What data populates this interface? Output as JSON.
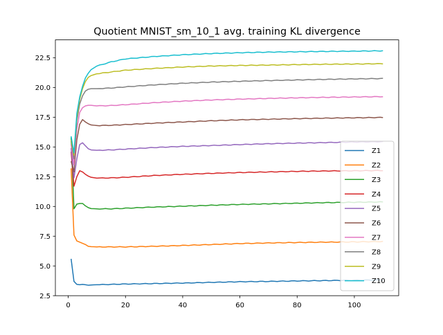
{
  "chart_data": {
    "type": "line",
    "title": "Quotient MNIST_sm_10_1 avg. training KL divergence",
    "xlabel": "",
    "ylabel": "",
    "xlim": [
      -4.5,
      115.5
    ],
    "ylim": [
      2.5,
      24.0
    ],
    "xticks": [
      0,
      20,
      40,
      60,
      80,
      100
    ],
    "yticks": [
      2.5,
      5.0,
      7.5,
      10.0,
      12.5,
      15.0,
      17.5,
      20.0,
      22.5
    ],
    "xtick_labels": [
      "0",
      "20",
      "40",
      "60",
      "80",
      "100"
    ],
    "ytick_labels": [
      "2.5",
      "5.0",
      "7.5",
      "10.0",
      "12.5",
      "15.0",
      "17.5",
      "20.0",
      "22.5"
    ],
    "grid": false,
    "legend": "right",
    "x_range": [
      1,
      110
    ],
    "series": [
      {
        "name": "Z1",
        "color": "#1f77b4",
        "points": [
          [
            1,
            5.6
          ],
          [
            2,
            3.7
          ],
          [
            3,
            3.45
          ],
          [
            4,
            3.42
          ],
          [
            5,
            3.45
          ],
          [
            6,
            3.42
          ],
          [
            7,
            3.38
          ],
          [
            8,
            3.4
          ],
          [
            10,
            3.42
          ],
          [
            15,
            3.45
          ],
          [
            20,
            3.48
          ],
          [
            30,
            3.52
          ],
          [
            40,
            3.56
          ],
          [
            50,
            3.62
          ],
          [
            60,
            3.67
          ],
          [
            70,
            3.7
          ],
          [
            80,
            3.74
          ],
          [
            90,
            3.77
          ],
          [
            100,
            3.8
          ],
          [
            110,
            3.82
          ]
        ]
      },
      {
        "name": "Z2",
        "color": "#ff7f0e",
        "points": [
          [
            1,
            13.2
          ],
          [
            2,
            7.6
          ],
          [
            3,
            7.1
          ],
          [
            4,
            7.0
          ],
          [
            5,
            6.9
          ],
          [
            6,
            6.8
          ],
          [
            7,
            6.65
          ],
          [
            8,
            6.62
          ],
          [
            10,
            6.6
          ],
          [
            15,
            6.6
          ],
          [
            20,
            6.6
          ],
          [
            30,
            6.65
          ],
          [
            40,
            6.72
          ],
          [
            50,
            6.8
          ],
          [
            60,
            6.88
          ],
          [
            70,
            6.93
          ],
          [
            80,
            6.97
          ],
          [
            90,
            7.0
          ],
          [
            100,
            7.02
          ],
          [
            110,
            7.05
          ]
        ]
      },
      {
        "name": "Z3",
        "color": "#2ca02c",
        "points": [
          [
            1,
            15.8
          ],
          [
            2,
            9.8
          ],
          [
            3,
            10.2
          ],
          [
            4,
            10.25
          ],
          [
            5,
            10.25
          ],
          [
            6,
            10.05
          ],
          [
            7,
            9.9
          ],
          [
            8,
            9.82
          ],
          [
            10,
            9.8
          ],
          [
            15,
            9.8
          ],
          [
            20,
            9.85
          ],
          [
            30,
            9.95
          ],
          [
            40,
            10.02
          ],
          [
            50,
            10.1
          ],
          [
            60,
            10.17
          ],
          [
            70,
            10.22
          ],
          [
            80,
            10.27
          ],
          [
            90,
            10.32
          ],
          [
            100,
            10.35
          ],
          [
            110,
            10.38
          ]
        ]
      },
      {
        "name": "Z4",
        "color": "#d62728",
        "points": [
          [
            1,
            14.6
          ],
          [
            2,
            11.7
          ],
          [
            3,
            12.5
          ],
          [
            4,
            13.0
          ],
          [
            5,
            12.9
          ],
          [
            6,
            12.7
          ],
          [
            7,
            12.55
          ],
          [
            8,
            12.45
          ],
          [
            10,
            12.38
          ],
          [
            15,
            12.4
          ],
          [
            20,
            12.45
          ],
          [
            30,
            12.6
          ],
          [
            40,
            12.7
          ],
          [
            50,
            12.78
          ],
          [
            60,
            12.85
          ],
          [
            70,
            12.9
          ],
          [
            80,
            12.95
          ],
          [
            90,
            12.98
          ],
          [
            100,
            13.0
          ],
          [
            110,
            13.02
          ]
        ]
      },
      {
        "name": "Z5",
        "color": "#9467bd",
        "points": [
          [
            1,
            14.9
          ],
          [
            2,
            12.4
          ],
          [
            3,
            14.0
          ],
          [
            4,
            15.2
          ],
          [
            5,
            15.35
          ],
          [
            6,
            15.1
          ],
          [
            7,
            14.85
          ],
          [
            8,
            14.75
          ],
          [
            10,
            14.72
          ],
          [
            15,
            14.75
          ],
          [
            20,
            14.82
          ],
          [
            30,
            14.95
          ],
          [
            40,
            15.05
          ],
          [
            50,
            15.12
          ],
          [
            60,
            15.2
          ],
          [
            70,
            15.27
          ],
          [
            80,
            15.32
          ],
          [
            90,
            15.37
          ],
          [
            100,
            15.41
          ],
          [
            110,
            15.44
          ]
        ]
      },
      {
        "name": "Z6",
        "color": "#8c564b",
        "points": [
          [
            1,
            13.8
          ],
          [
            2,
            12.9
          ],
          [
            3,
            15.6
          ],
          [
            4,
            16.9
          ],
          [
            5,
            17.3
          ],
          [
            6,
            17.1
          ],
          [
            7,
            16.95
          ],
          [
            8,
            16.85
          ],
          [
            10,
            16.8
          ],
          [
            15,
            16.82
          ],
          [
            20,
            16.88
          ],
          [
            30,
            17.0
          ],
          [
            40,
            17.1
          ],
          [
            50,
            17.2
          ],
          [
            60,
            17.28
          ],
          [
            70,
            17.33
          ],
          [
            80,
            17.38
          ],
          [
            90,
            17.42
          ],
          [
            100,
            17.45
          ],
          [
            110,
            17.48
          ]
        ]
      },
      {
        "name": "Z7",
        "color": "#e377c2",
        "points": [
          [
            1,
            15.2
          ],
          [
            2,
            13.5
          ],
          [
            3,
            16.5
          ],
          [
            4,
            17.9
          ],
          [
            5,
            18.3
          ],
          [
            6,
            18.45
          ],
          [
            7,
            18.5
          ],
          [
            8,
            18.5
          ],
          [
            10,
            18.45
          ],
          [
            15,
            18.48
          ],
          [
            20,
            18.55
          ],
          [
            30,
            18.72
          ],
          [
            40,
            18.85
          ],
          [
            50,
            18.95
          ],
          [
            60,
            19.02
          ],
          [
            70,
            19.08
          ],
          [
            80,
            19.13
          ],
          [
            90,
            19.17
          ],
          [
            100,
            19.2
          ],
          [
            110,
            19.23
          ]
        ]
      },
      {
        "name": "Z8",
        "color": "#7f7f7f",
        "points": [
          [
            1,
            15.5
          ],
          [
            2,
            14.0
          ],
          [
            3,
            17.2
          ],
          [
            4,
            18.6
          ],
          [
            5,
            19.3
          ],
          [
            6,
            19.7
          ],
          [
            7,
            19.85
          ],
          [
            8,
            19.9
          ],
          [
            10,
            19.9
          ],
          [
            15,
            19.95
          ],
          [
            20,
            20.05
          ],
          [
            30,
            20.22
          ],
          [
            40,
            20.35
          ],
          [
            50,
            20.45
          ],
          [
            60,
            20.52
          ],
          [
            70,
            20.58
          ],
          [
            80,
            20.63
          ],
          [
            90,
            20.68
          ],
          [
            100,
            20.72
          ],
          [
            110,
            20.75
          ]
        ]
      },
      {
        "name": "Z9",
        "color": "#bcbd22",
        "points": [
          [
            1,
            15.6
          ],
          [
            2,
            14.3
          ],
          [
            3,
            17.5
          ],
          [
            4,
            19.0
          ],
          [
            5,
            19.9
          ],
          [
            6,
            20.5
          ],
          [
            7,
            20.85
          ],
          [
            8,
            21.0
          ],
          [
            10,
            21.15
          ],
          [
            15,
            21.3
          ],
          [
            20,
            21.45
          ],
          [
            30,
            21.6
          ],
          [
            40,
            21.72
          ],
          [
            50,
            21.8
          ],
          [
            60,
            21.85
          ],
          [
            70,
            21.88
          ],
          [
            80,
            21.92
          ],
          [
            90,
            21.95
          ],
          [
            100,
            21.97
          ],
          [
            110,
            22.0
          ]
        ]
      },
      {
        "name": "Z10",
        "color": "#17becf",
        "points": [
          [
            1,
            15.9
          ],
          [
            2,
            14.5
          ],
          [
            3,
            17.8
          ],
          [
            4,
            19.2
          ],
          [
            5,
            20.1
          ],
          [
            6,
            20.8
          ],
          [
            7,
            21.2
          ],
          [
            8,
            21.5
          ],
          [
            10,
            21.8
          ],
          [
            15,
            22.15
          ],
          [
            20,
            22.4
          ],
          [
            30,
            22.6
          ],
          [
            40,
            22.75
          ],
          [
            50,
            22.85
          ],
          [
            60,
            22.92
          ],
          [
            70,
            22.97
          ],
          [
            80,
            23.0
          ],
          [
            90,
            23.03
          ],
          [
            100,
            23.05
          ],
          [
            110,
            23.08
          ]
        ]
      }
    ]
  }
}
